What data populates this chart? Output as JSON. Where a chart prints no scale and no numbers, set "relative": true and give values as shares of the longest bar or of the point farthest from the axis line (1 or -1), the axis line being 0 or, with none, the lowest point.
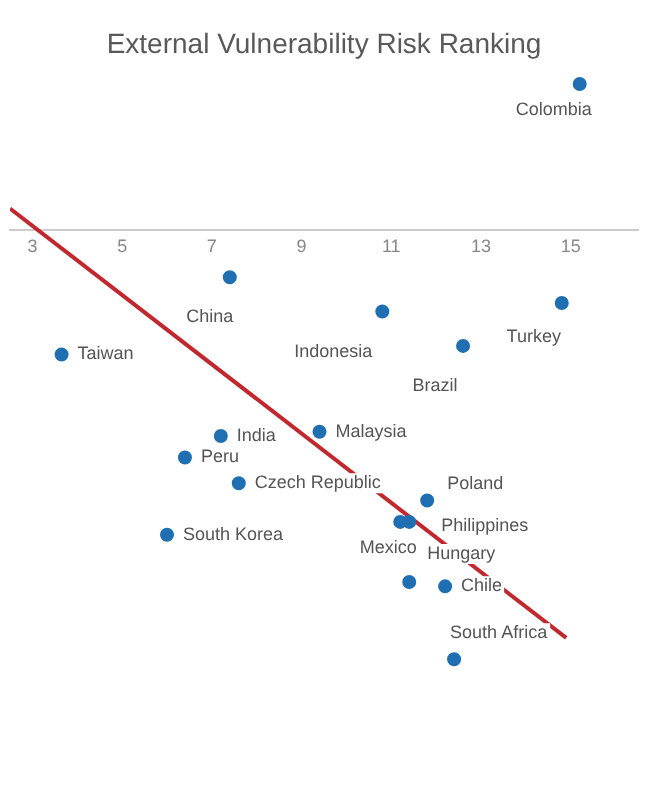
{
  "chart_data": {
    "type": "scatter",
    "title": "External Vulnerability Risk Ranking",
    "relative": true,
    "xlim": [
      2.5,
      16.5
    ],
    "xticks": [
      3,
      5,
      7,
      9,
      11,
      13,
      15
    ],
    "grid": false,
    "legend": false,
    "marker": "circle",
    "series": [
      {
        "color": "#1f6fb2",
        "x": [
          15.2,
          7.4,
          10.8,
          14.8,
          12.6,
          3.65,
          9.4,
          7.2,
          6.4,
          7.6,
          11.8,
          11.4,
          11.2,
          6.0,
          11.4,
          12.2,
          12.4
        ],
        "values": [
          0.34,
          -0.11,
          -0.19,
          -0.17,
          -0.27,
          -0.29,
          -0.47,
          -0.48,
          -0.53,
          -0.59,
          -0.63,
          -0.68,
          -0.68,
          -0.71,
          -0.82,
          -0.83,
          -1
        ]
      },
      {
        "type": "line",
        "color": "#c0282d",
        "marker": "none",
        "x": [
          2.5,
          14.9
        ],
        "values": [
          0.05,
          -0.95
        ]
      }
    ],
    "annotations": [
      {
        "text": "Colombia",
        "x": 15.2,
        "y": 0.34
      },
      {
        "text": "China",
        "x": 7.4,
        "y": -0.11
      },
      {
        "text": "Indonesia",
        "x": 10.8,
        "y": -0.19
      },
      {
        "text": "Turkey",
        "x": 14.8,
        "y": -0.17
      },
      {
        "text": "Brazil",
        "x": 12.6,
        "y": -0.27
      },
      {
        "text": "Taiwan",
        "x": 3.65,
        "y": -0.29
      },
      {
        "text": "Malaysia",
        "x": 9.4,
        "y": -0.47
      },
      {
        "text": "India",
        "x": 7.2,
        "y": -0.48
      },
      {
        "text": "Peru",
        "x": 6.4,
        "y": -0.53
      },
      {
        "text": "Czech Republic",
        "x": 7.6,
        "y": -0.59
      },
      {
        "text": "Poland",
        "x": 11.8,
        "y": -0.63
      },
      {
        "text": "Philippines",
        "x": 11.4,
        "y": -0.68
      },
      {
        "text": "Mexico",
        "x": 11.2,
        "y": -0.68
      },
      {
        "text": "South Korea",
        "x": 6.0,
        "y": -0.71
      },
      {
        "text": "Hungary",
        "x": 11.4,
        "y": -0.82
      },
      {
        "text": "Chile",
        "x": 12.2,
        "y": -0.83
      },
      {
        "text": "South Africa",
        "x": 12.4,
        "y": -1
      }
    ]
  }
}
